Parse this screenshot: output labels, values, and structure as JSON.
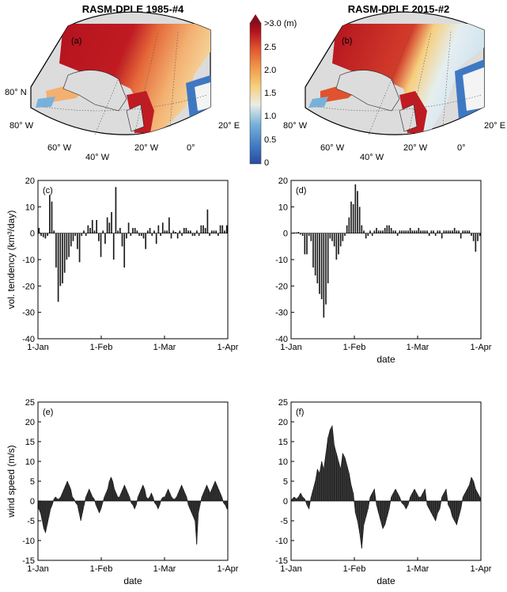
{
  "maps": [
    {
      "title": "RASM-DPLE 1985-#4",
      "panel": "(a)",
      "lat_label": "80° N",
      "lon_labels": [
        "80° W",
        "60° W",
        "40° W",
        "20° W",
        "0°",
        "20° E"
      ]
    },
    {
      "title": "RASM-DPLE 2015-#2",
      "panel": "(b)",
      "lon_labels": [
        "80° W",
        "60° W",
        "40° W",
        "20° W",
        "0°",
        "20° E"
      ]
    }
  ],
  "colorbar": {
    "top_label": ">3.0 (m)",
    "ticks": [
      "2.5",
      "2.0",
      "1.5",
      "1.0",
      "0.5",
      "0"
    ],
    "colors": [
      "#2c4aa0",
      "#3f78c2",
      "#77b1da",
      "#e9eee6",
      "#f6cf7e",
      "#f19a4a",
      "#e0532e",
      "#b4131f",
      "#8a0d1b"
    ]
  },
  "chart_data": [
    {
      "type": "bar",
      "panel": "(c)",
      "ylabel": "vol. tendency (km³/day)",
      "xlabel": "",
      "ylim": [
        -40,
        20
      ],
      "yticks": [
        "20",
        "10",
        "0",
        "-10",
        "-20",
        "-30",
        "-40"
      ],
      "xticks": [
        "1-Jan",
        "1-Feb",
        "1-Mar",
        "1-Apr"
      ],
      "values": [
        2,
        -1,
        -1.5,
        -2,
        -1,
        14.5,
        12,
        1,
        -13,
        -26,
        -20,
        -19,
        -15,
        -10,
        -9,
        -5,
        -3,
        -1,
        -6,
        -11,
        -1,
        1,
        -1,
        3,
        2,
        5,
        1,
        5,
        -3,
        -9,
        1,
        -4,
        6,
        4,
        8,
        -10,
        17.5,
        1,
        2,
        -5,
        -13,
        -2,
        4,
        -1,
        2,
        2,
        1,
        -1,
        -1,
        -2,
        -6,
        1,
        2,
        -1,
        1,
        -4,
        3,
        -1,
        4,
        1,
        1,
        6,
        -2,
        1,
        0.5,
        -2,
        1,
        -1,
        2,
        2,
        1,
        1,
        -1,
        -1,
        1,
        -1,
        3,
        3,
        2,
        9,
        -1,
        1,
        1,
        1,
        -1,
        3,
        3,
        1,
        3
      ]
    },
    {
      "type": "bar",
      "panel": "(d)",
      "ylabel": "",
      "xlabel": "date",
      "ylim": [
        -40,
        20
      ],
      "yticks": [
        "20",
        "10",
        "0",
        "-10",
        "-20",
        "-30",
        "-40"
      ],
      "xticks": [
        "1-Jan",
        "1-Feb",
        "1-Mar",
        "1-Apr"
      ],
      "values": [
        0,
        0.3,
        0.3,
        0.5,
        -0.5,
        -1,
        -8,
        -8,
        -1,
        -3,
        -13,
        -16,
        -19,
        -23,
        -25,
        -32,
        -27,
        -19,
        -2,
        -3,
        -5,
        -10,
        -8,
        -5,
        -3,
        -1,
        3,
        6,
        12,
        11,
        18.5,
        16,
        10,
        3,
        1,
        -2,
        -1,
        1,
        -1,
        1,
        2,
        1,
        1,
        1,
        2,
        3,
        3,
        2,
        1,
        1,
        -1,
        1,
        1,
        1,
        1,
        1,
        2,
        1,
        1,
        1,
        2,
        1,
        1,
        1,
        1,
        -1,
        1,
        1,
        -1,
        1,
        1,
        -2,
        1,
        1,
        1,
        1,
        1,
        2,
        1,
        1,
        -2,
        1,
        1,
        1,
        1,
        -1,
        -3,
        -7,
        -3,
        -1
      ]
    },
    {
      "type": "area",
      "panel": "(e)",
      "ylabel": "wind speed (m/s)",
      "xlabel": "date",
      "ylim": [
        -15,
        25
      ],
      "yticks": [
        "25",
        "20",
        "15",
        "10",
        "5",
        "0",
        "-5",
        "-10",
        "-15"
      ],
      "xticks": [
        "1-Jan",
        "1-Feb",
        "1-Mar",
        "1-Apr"
      ],
      "values": [
        -2,
        -3,
        -5,
        -7,
        -8,
        -6,
        -4,
        -2,
        -1,
        0.5,
        1,
        0.5,
        0.5,
        1,
        2,
        3,
        4,
        5,
        4,
        3,
        1,
        0.5,
        -0.5,
        -1,
        -3,
        -5,
        -3,
        -1,
        1,
        2,
        3,
        2,
        1,
        0.5,
        -1,
        -2,
        -3,
        -2,
        -0.5,
        1,
        2,
        3,
        5,
        6,
        5,
        3,
        2,
        1,
        1,
        2,
        3,
        4,
        3,
        2,
        1,
        -0.5,
        -1,
        -2,
        -1,
        1,
        2,
        3,
        4,
        3,
        1,
        0.5,
        1,
        2,
        1,
        -0.5,
        -1,
        -2,
        -1,
        0.5,
        1,
        1,
        2,
        3,
        2,
        1,
        0.5,
        0.5,
        1,
        2,
        3,
        4,
        3,
        2,
        1,
        -1,
        -2,
        -3,
        -4,
        -5,
        -11,
        -3,
        -1,
        1,
        2,
        3,
        4,
        3,
        2,
        3,
        4,
        5,
        4,
        3,
        2,
        1,
        -0.5,
        -1,
        -2
      ]
    },
    {
      "type": "area",
      "panel": "(f)",
      "ylabel": "",
      "xlabel": "date",
      "ylim": [
        -15,
        25
      ],
      "yticks": [
        "25",
        "20",
        "15",
        "10",
        "5",
        "0",
        "-5",
        "-10",
        "-15"
      ],
      "xticks": [
        "1-Jan",
        "1-Feb",
        "1-Mar",
        "1-Apr"
      ],
      "values": [
        0.5,
        1,
        0.5,
        1,
        2,
        1,
        0.5,
        -1,
        -2,
        1,
        3,
        5,
        8,
        7,
        10,
        8,
        12,
        16,
        18,
        19,
        14,
        12,
        10,
        8,
        12,
        11,
        9,
        7,
        4,
        2,
        -3,
        -5,
        -8,
        -12,
        -6,
        -4,
        -2,
        1,
        2,
        3,
        -1,
        -3,
        -5,
        -7,
        -6,
        -4,
        -2,
        1,
        2,
        3,
        2,
        1,
        -0.5,
        -1,
        -2,
        -1,
        1,
        2,
        3,
        2,
        1,
        1,
        2,
        3,
        -1,
        -2,
        -3,
        -4,
        -5,
        -3,
        -2,
        1,
        2,
        3,
        -1,
        -2,
        -4,
        -5,
        -6,
        -4,
        -2,
        1,
        2,
        3,
        4,
        6,
        5,
        3,
        2,
        1
      ]
    }
  ]
}
